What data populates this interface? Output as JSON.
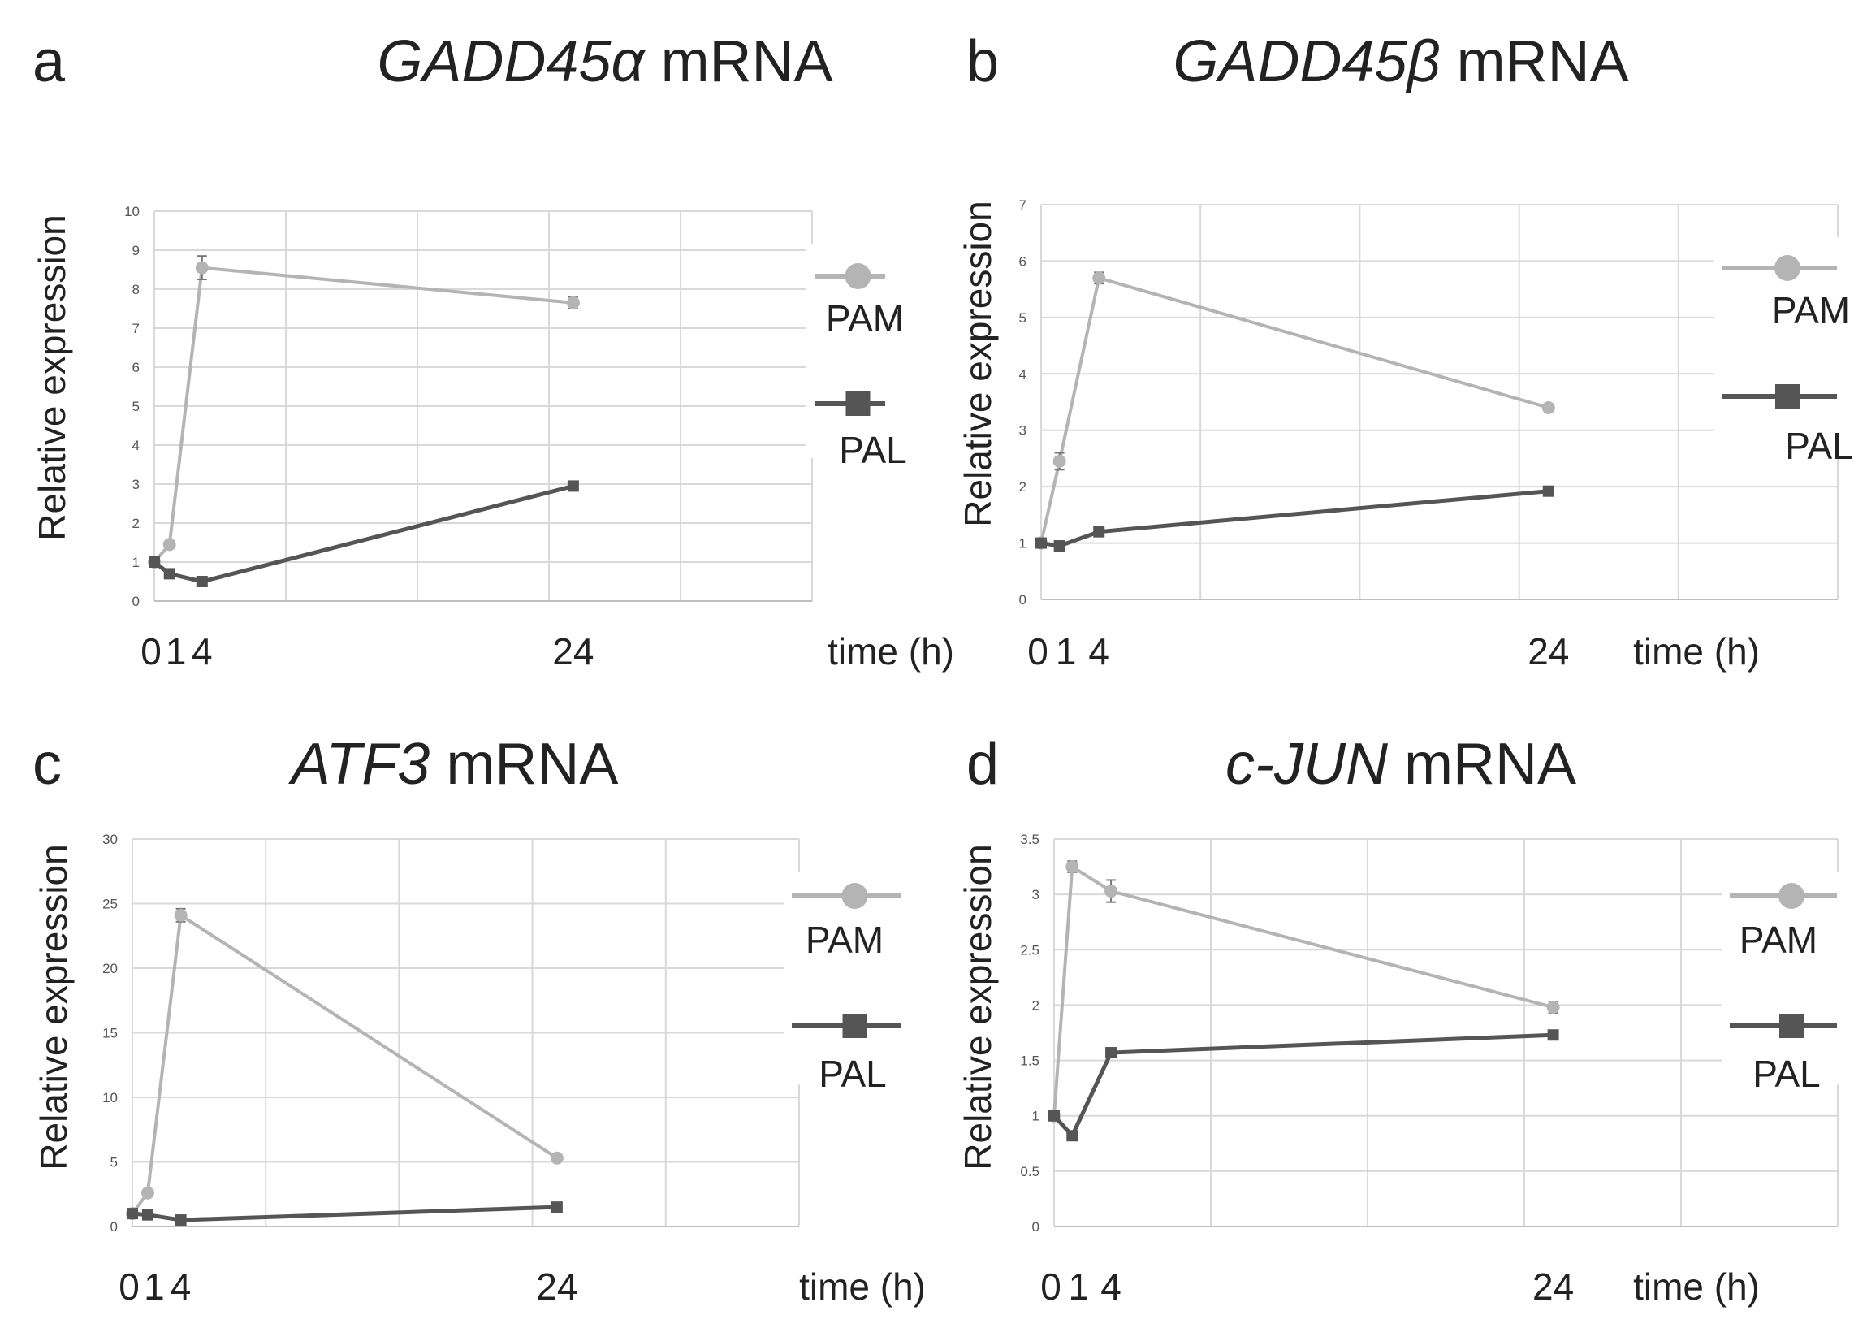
{
  "colors": {
    "PAM": "#b4b4b4",
    "PAL": "#555555",
    "grid": "#d9d9d9",
    "axis": "#bfbfbf"
  },
  "chart_data": [
    {
      "panel": "a",
      "title_gene": "GADD45α",
      "title_unit": "mRNA",
      "type": "line",
      "ylabel": "Relative expression",
      "xlabel": "time (h)",
      "x": [
        0,
        1,
        4,
        24
      ],
      "xticks": [
        "0",
        "1",
        "4",
        "24"
      ],
      "ylim": [
        0,
        10
      ],
      "yticks": [
        "0",
        "1",
        "2",
        "3",
        "4",
        "5",
        "6",
        "7",
        "8",
        "9",
        "10"
      ],
      "series": [
        {
          "name": "PAM",
          "values": [
            1.0,
            1.45,
            8.55,
            7.65
          ],
          "errors": [
            0,
            0.05,
            0.3,
            0.15
          ]
        },
        {
          "name": "PAL",
          "values": [
            1.0,
            0.7,
            0.5,
            2.95
          ],
          "errors": [
            0,
            0.03,
            0.03,
            0.05
          ]
        }
      ]
    },
    {
      "panel": "b",
      "title_gene": "GADD45β",
      "title_unit": "mRNA",
      "type": "line",
      "ylabel": "Relative expression",
      "xlabel": "time (h)",
      "x": [
        0,
        1,
        4,
        24
      ],
      "xticks": [
        "0",
        "1",
        "4",
        "24"
      ],
      "ylim": [
        0,
        7
      ],
      "yticks": [
        "0",
        "1",
        "2",
        "3",
        "4",
        "5",
        "6",
        "7"
      ],
      "series": [
        {
          "name": "PAM",
          "values": [
            1.0,
            2.45,
            5.7,
            3.4
          ],
          "errors": [
            0,
            0.15,
            0.1,
            0.03
          ]
        },
        {
          "name": "PAL",
          "values": [
            1.0,
            0.95,
            1.2,
            1.92
          ],
          "errors": [
            0,
            0.03,
            0.03,
            0.03
          ]
        }
      ]
    },
    {
      "panel": "c",
      "title_gene": "ATF3",
      "title_unit": "mRNA",
      "type": "line",
      "ylabel": "Relative expression",
      "xlabel": "time (h)",
      "x": [
        0,
        1,
        4,
        24
      ],
      "xticks": [
        "0",
        "1",
        "4",
        "24"
      ],
      "ylim": [
        0,
        30
      ],
      "yticks": [
        "0",
        "5",
        "10",
        "15",
        "20",
        "25",
        "30"
      ],
      "series": [
        {
          "name": "PAM",
          "values": [
            1.0,
            2.6,
            24.1,
            5.3
          ],
          "errors": [
            0,
            0.1,
            0.5,
            0.1
          ]
        },
        {
          "name": "PAL",
          "values": [
            1.0,
            0.9,
            0.5,
            1.5
          ],
          "errors": [
            0,
            0.05,
            0.05,
            0.05
          ]
        }
      ]
    },
    {
      "panel": "d",
      "title_gene": "c-JUN",
      "title_unit": "mRNA",
      "type": "line",
      "ylabel": "Relative expression",
      "xlabel": "time (h)",
      "x": [
        0,
        1,
        4,
        24
      ],
      "xticks": [
        "0",
        "1",
        "4",
        "24"
      ],
      "ylim": [
        0,
        3.5
      ],
      "yticks": [
        "0",
        "0.5",
        "1",
        "1.5",
        "2",
        "2.5",
        "3",
        "3.5"
      ],
      "series": [
        {
          "name": "PAM",
          "values": [
            1.0,
            3.25,
            3.03,
            1.98
          ],
          "errors": [
            0,
            0.05,
            0.1,
            0.05
          ]
        },
        {
          "name": "PAL",
          "values": [
            1.0,
            0.82,
            1.57,
            1.73
          ],
          "errors": [
            0,
            0.02,
            0.02,
            0.02
          ]
        }
      ]
    }
  ]
}
